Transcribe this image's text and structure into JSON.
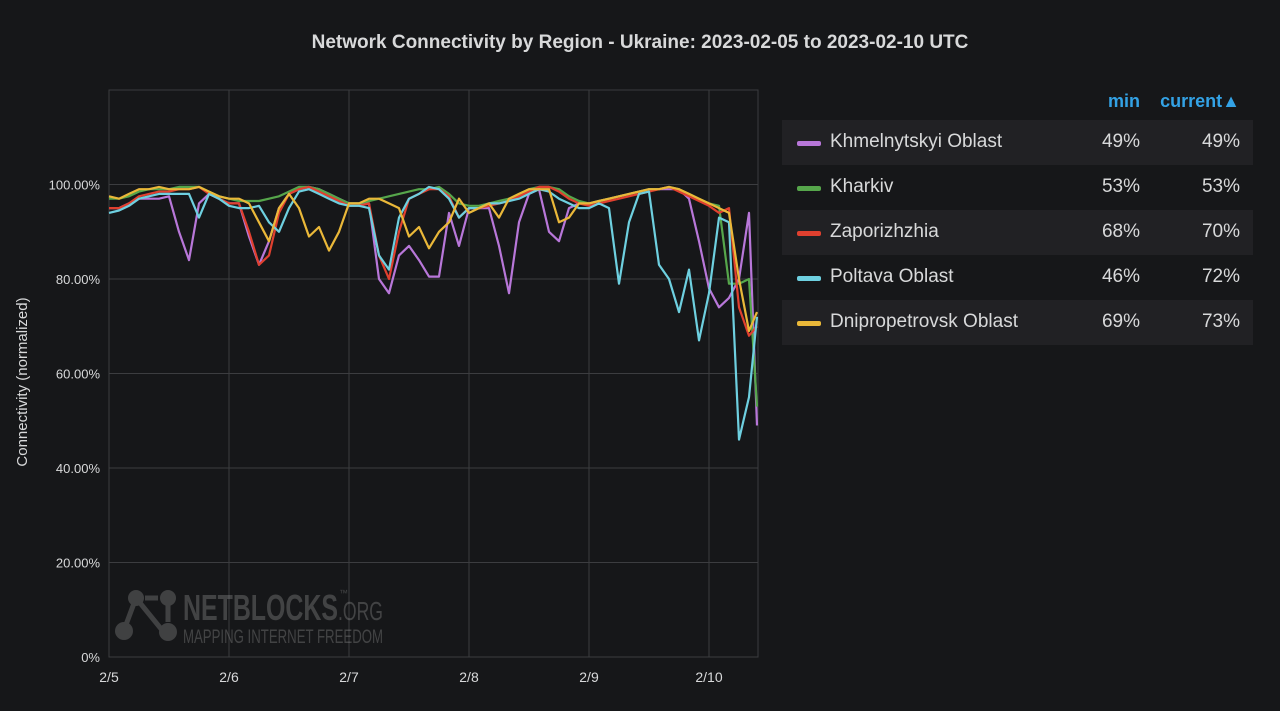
{
  "chart_data": {
    "type": "line",
    "title": "Network Connectivity by Region - Ukraine: 2023-02-05 to 2023-02-10 UTC",
    "ylabel": "Connectivity (normalized)",
    "xlabel": "",
    "ylim": [
      0,
      120
    ],
    "xlim": [
      "2023-02-05T00:00",
      "2023-02-10T09:48"
    ],
    "grid": true,
    "legend_placement": "right",
    "y_ticks": [
      0,
      20,
      40,
      60,
      80,
      100
    ],
    "y_tick_labels": [
      "0%",
      "20.00%",
      "40.00%",
      "60.00%",
      "80.00%",
      "100.00%"
    ],
    "x_ticks": [
      "2023-02-05T00:00",
      "2023-02-06T00:00",
      "2023-02-07T00:00",
      "2023-02-08T00:00",
      "2023-02-09T00:00",
      "2023-02-10T00:00"
    ],
    "x_tick_labels": [
      "2/5",
      "2/6",
      "2/7",
      "2/8",
      "2/9",
      "2/10"
    ],
    "legend_columns": {
      "min": "min",
      "current": "current▲"
    },
    "x": [
      "2023-02-05T00:00",
      "2023-02-05T02:00",
      "2023-02-05T04:00",
      "2023-02-05T06:00",
      "2023-02-05T08:00",
      "2023-02-05T10:00",
      "2023-02-05T12:00",
      "2023-02-05T14:00",
      "2023-02-05T16:00",
      "2023-02-05T18:00",
      "2023-02-05T20:00",
      "2023-02-05T22:00",
      "2023-02-06T00:00",
      "2023-02-06T02:00",
      "2023-02-06T04:00",
      "2023-02-06T06:00",
      "2023-02-06T08:00",
      "2023-02-06T10:00",
      "2023-02-06T12:00",
      "2023-02-06T14:00",
      "2023-02-06T16:00",
      "2023-02-06T18:00",
      "2023-02-06T20:00",
      "2023-02-06T22:00",
      "2023-02-07T00:00",
      "2023-02-07T02:00",
      "2023-02-07T04:00",
      "2023-02-07T06:00",
      "2023-02-07T08:00",
      "2023-02-07T10:00",
      "2023-02-07T12:00",
      "2023-02-07T14:00",
      "2023-02-07T16:00",
      "2023-02-07T18:00",
      "2023-02-07T20:00",
      "2023-02-07T22:00",
      "2023-02-08T00:00",
      "2023-02-08T02:00",
      "2023-02-08T04:00",
      "2023-02-08T06:00",
      "2023-02-08T08:00",
      "2023-02-08T10:00",
      "2023-02-08T12:00",
      "2023-02-08T14:00",
      "2023-02-08T16:00",
      "2023-02-08T18:00",
      "2023-02-08T20:00",
      "2023-02-08T22:00",
      "2023-02-09T00:00",
      "2023-02-09T02:00",
      "2023-02-09T04:00",
      "2023-02-09T06:00",
      "2023-02-09T08:00",
      "2023-02-09T10:00",
      "2023-02-09T12:00",
      "2023-02-09T14:00",
      "2023-02-09T16:00",
      "2023-02-09T18:00",
      "2023-02-09T20:00",
      "2023-02-09T22:00",
      "2023-02-10T00:00",
      "2023-02-10T02:00",
      "2023-02-10T04:00",
      "2023-02-10T06:00",
      "2023-02-10T08:00",
      "2023-02-10T09:36"
    ],
    "series": [
      {
        "name": "Khmelnytskyi Oblast",
        "color": "#b877d9",
        "min": "49%",
        "current": "49%",
        "values": [
          95,
          95,
          96,
          97,
          97,
          97,
          97.5,
          90,
          84,
          96,
          98,
          97,
          96,
          96,
          89,
          83,
          88,
          95,
          98,
          99,
          99.5,
          99,
          98,
          97,
          96,
          96,
          96,
          80,
          77,
          85,
          87,
          84,
          80.5,
          80.5,
          94,
          87,
          95,
          95,
          95,
          87,
          77,
          92,
          98,
          99,
          90,
          88,
          95,
          96,
          96,
          96.5,
          97,
          97.5,
          98,
          98.5,
          99,
          99,
          99,
          99,
          97,
          88,
          78,
          74,
          76,
          80,
          94,
          49
        ]
      },
      {
        "name": "Kharkiv",
        "color": "#56a64b",
        "min": "53%",
        "current": "53%",
        "values": [
          97,
          97,
          97.5,
          98.5,
          99,
          99,
          99,
          99.5,
          99.5,
          99.5,
          98.5,
          97.5,
          97,
          96.5,
          96.5,
          96.5,
          97,
          97.5,
          98.5,
          99.5,
          99.5,
          99,
          98,
          97,
          96,
          96,
          96.5,
          97,
          97.5,
          98,
          98.5,
          99,
          99,
          99.5,
          98,
          96,
          95.5,
          95.5,
          96,
          96.5,
          97,
          98,
          99,
          99.5,
          99.5,
          99,
          97.5,
          96.5,
          96,
          96.5,
          97,
          97.5,
          98,
          98.5,
          99,
          99,
          99.5,
          99,
          98,
          97,
          96,
          95.5,
          79,
          79,
          80,
          53
        ]
      },
      {
        "name": "Zaporizhzhia",
        "color": "#e0402f",
        "min": "68%",
        "current": "70%",
        "values": [
          95,
          95,
          96,
          97.5,
          98,
          98.5,
          98.5,
          99,
          99,
          99.5,
          98,
          97,
          96,
          96,
          90,
          83,
          85,
          94,
          98,
          99,
          99.5,
          98.5,
          97.5,
          96.5,
          95.5,
          95.5,
          96,
          85,
          80,
          90,
          97,
          98,
          99,
          99,
          97.5,
          93,
          95,
          95,
          95.5,
          96,
          96.5,
          97.5,
          98.5,
          99.5,
          99.5,
          98.5,
          97,
          96,
          95.5,
          96,
          96.5,
          97,
          97.5,
          98,
          98.5,
          99,
          99.5,
          98.5,
          97.5,
          96.5,
          95.5,
          94,
          95,
          74,
          68,
          70
        ]
      },
      {
        "name": "Poltava Oblast",
        "color": "#6ed0e0",
        "min": "46%",
        "current": "72%",
        "values": [
          94,
          94.5,
          95.5,
          97,
          97.5,
          98,
          98,
          98,
          98,
          93,
          98,
          97,
          95.5,
          95,
          95,
          95.5,
          92,
          90,
          95,
          98.5,
          99,
          98,
          97,
          96,
          95.5,
          95.5,
          95,
          85,
          82,
          93,
          97,
          98,
          99.5,
          99,
          97,
          93,
          95,
          95,
          96,
          96,
          96.5,
          97,
          98,
          99,
          98.5,
          97,
          96,
          95,
          95,
          96,
          95,
          79,
          92,
          98,
          98.5,
          83,
          80,
          73,
          82,
          67,
          77,
          93,
          92,
          46,
          55,
          72
        ]
      },
      {
        "name": "Dnipropetrovsk Oblast",
        "color": "#eab839",
        "min": "69%",
        "current": "73%",
        "values": [
          97.5,
          97,
          98,
          99,
          99,
          99.5,
          99,
          99,
          99,
          99.5,
          98.5,
          97.5,
          97,
          97,
          96,
          92,
          88,
          95,
          98,
          95,
          89,
          91,
          86,
          90,
          96,
          96,
          97,
          97,
          96,
          95,
          89,
          91,
          86.5,
          90,
          92,
          97,
          94,
          95,
          96,
          93,
          97,
          98,
          99,
          99,
          99,
          92,
          93,
          96,
          96,
          96.5,
          97,
          97.5,
          98,
          98.5,
          99,
          99,
          99.5,
          99,
          98,
          97,
          96,
          95,
          94,
          80,
          69,
          73
        ]
      }
    ]
  },
  "watermark": {
    "brand": "NETBLOCKS",
    "tld": ".ORG",
    "tm": "™",
    "tagline": "MAPPING INTERNET FREEDOM"
  }
}
